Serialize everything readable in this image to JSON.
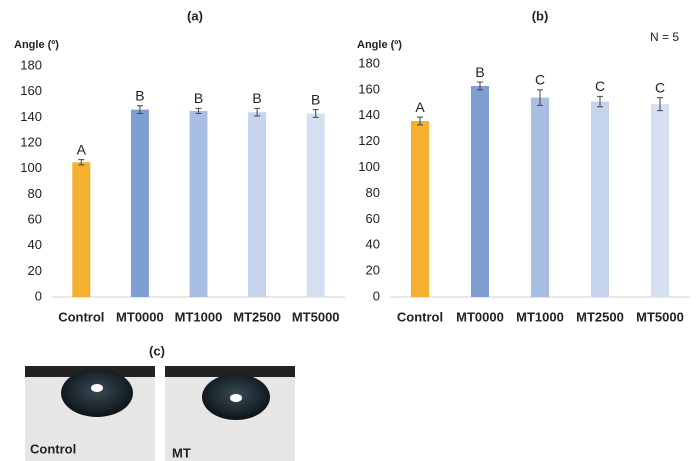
{
  "chart_data": [
    {
      "type": "bar",
      "title": "(a)",
      "y_label": "Angle (º)",
      "categories": [
        "Control",
        "MT0000",
        "MT1000",
        "MT2500",
        "MT5000"
      ],
      "values": [
        105,
        146,
        145,
        144,
        143
      ],
      "errors": [
        2,
        3,
        2,
        3,
        3
      ],
      "value_labels": [
        "A",
        "B",
        "B",
        "B",
        "B"
      ],
      "colors": [
        "#f4b130",
        "#7f9fd2",
        "#a7bde2",
        "#c5d4ec",
        "#d4e0f2"
      ],
      "ylim": [
        0,
        180
      ],
      "yticks": [
        0,
        20,
        40,
        60,
        80,
        100,
        120,
        140,
        160,
        180
      ],
      "grid": false
    },
    {
      "type": "bar",
      "title": "(b)",
      "y_label": "Angle (º)",
      "annotation": "N = 5",
      "categories": [
        "Control",
        "MT0000",
        "MT1000",
        "MT2500",
        "MT5000"
      ],
      "values": [
        136,
        163,
        154,
        151,
        149
      ],
      "errors": [
        3,
        3,
        6,
        4,
        5
      ],
      "value_labels": [
        "A",
        "B",
        "C",
        "C",
        "C"
      ],
      "colors": [
        "#f4b130",
        "#7f9fd2",
        "#a7bde2",
        "#c5d4ec",
        "#d4e0f2"
      ],
      "ylim": [
        0,
        180
      ],
      "yticks": [
        0,
        20,
        40,
        60,
        80,
        100,
        120,
        140,
        160,
        180
      ],
      "grid": false
    }
  ],
  "panel_c": {
    "title": "(c)",
    "labels": [
      "Control",
      "MT"
    ]
  }
}
